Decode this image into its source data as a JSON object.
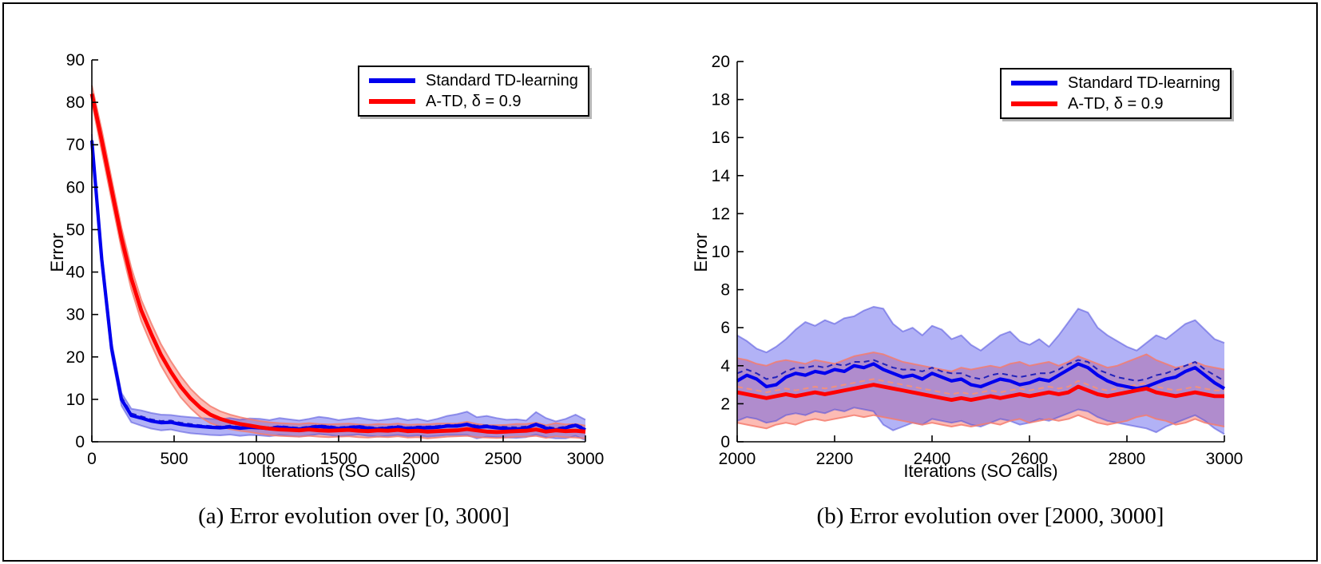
{
  "chart_data": [
    {
      "type": "line",
      "caption": "(a) Error evolution over [0, 3000]",
      "xlabel": "Iterations (SO calls)",
      "ylabel": "Error",
      "xlim": [
        0,
        3000
      ],
      "ylim": [
        0,
        90
      ],
      "xticks": [
        0,
        500,
        1000,
        1500,
        2000,
        2500,
        3000
      ],
      "yticks": [
        0,
        10,
        20,
        30,
        40,
        50,
        60,
        70,
        80,
        90
      ],
      "legend_position": "top-right",
      "grid": false,
      "x_start": 0,
      "x_step": 60,
      "series": [
        {
          "name": "Standard TD-learning",
          "color": "#0000ee",
          "band_fill": "rgba(85,85,235,0.45)",
          "edge_color": "rgba(80,80,220,0.55)",
          "dash_color": "#2222bb",
          "mean": [
            71,
            43,
            22,
            10,
            6.2,
            5.6,
            4.9,
            4.5,
            4.6,
            4.1,
            3.8,
            3.6,
            3.4,
            3.3,
            3.5,
            3.2,
            3.4,
            3.3,
            3.1,
            3.4,
            3.2,
            3.0,
            3.3,
            3.6,
            3.4,
            3.1,
            3.3,
            3.5,
            3.2,
            3.0,
            3.2,
            3.4,
            3.1,
            3.3,
            3.3,
            3.4,
            3.7,
            3.7,
            4.1,
            3.4,
            3.6,
            3.3,
            3.1,
            3.0,
            3.2,
            4.1,
            3.2,
            2.8,
            3.3,
            3.9,
            2.8
          ],
          "dashed": [
            71.2,
            43.4,
            22.5,
            10.6,
            6.7,
            6.0,
            5.3,
            4.9,
            5.0,
            4.5,
            4.2,
            3.9,
            3.7,
            3.6,
            3.8,
            3.5,
            3.7,
            3.6,
            3.4,
            3.7,
            3.5,
            3.3,
            3.6,
            3.9,
            3.7,
            3.4,
            3.6,
            3.8,
            3.5,
            3.3,
            3.5,
            3.7,
            3.4,
            3.6,
            3.6,
            3.7,
            4.0,
            4.0,
            4.3,
            3.8,
            3.9,
            3.6,
            3.5,
            3.4,
            3.6,
            4.3,
            3.6,
            3.2,
            3.6,
            4.2,
            3.2
          ],
          "upper": [
            72.5,
            44.5,
            23.5,
            11.5,
            7.8,
            7.4,
            6.8,
            6.4,
            6.3,
            6.0,
            5.8,
            5.6,
            5.4,
            5.3,
            5.6,
            5.2,
            5.5,
            5.4,
            5.1,
            5.6,
            5.3,
            5.0,
            5.4,
            5.9,
            5.6,
            5.1,
            5.4,
            5.7,
            5.3,
            5.0,
            5.3,
            5.6,
            5.1,
            5.4,
            4.9,
            5.4,
            6.1,
            6.5,
            7.1,
            5.8,
            6.1,
            5.6,
            5.2,
            5.3,
            5.0,
            7.0,
            5.6,
            4.8,
            5.4,
            6.4,
            5.2
          ],
          "lower": [
            69.5,
            41.5,
            20.5,
            8.5,
            4.6,
            3.8,
            3.1,
            2.7,
            2.9,
            2.4,
            2.0,
            1.8,
            1.6,
            1.5,
            1.7,
            1.4,
            1.6,
            1.5,
            1.3,
            1.6,
            1.4,
            1.2,
            1.5,
            1.8,
            1.6,
            1.3,
            1.5,
            1.7,
            1.4,
            1.2,
            1.4,
            1.6,
            1.3,
            1.5,
            1.2,
            1.4,
            1.6,
            1.6,
            1.6,
            0.8,
            1.2,
            1.1,
            1.0,
            0.9,
            1.1,
            1.7,
            1.1,
            0.8,
            0.8,
            1.4,
            0.4
          ]
        },
        {
          "name": "A-TD, δ = 0.9",
          "color": "#ff0000",
          "band_fill": "rgba(250,120,105,0.5)",
          "edge_color": "rgba(245,125,110,0.85)",
          "dash_color": "#f2907e",
          "mean": [
            82,
            71,
            59.5,
            48,
            38.5,
            31,
            25.5,
            20.5,
            16.5,
            13,
            10.2,
            8.0,
            6.4,
            5.4,
            4.7,
            4.2,
            3.8,
            3.4,
            3.1,
            2.9,
            2.8,
            2.7,
            2.9,
            2.7,
            2.6,
            2.7,
            2.8,
            2.6,
            2.5,
            2.7,
            2.6,
            2.8,
            2.5,
            2.6,
            2.4,
            2.5,
            2.6,
            2.7,
            3.0,
            2.7,
            2.4,
            2.3,
            2.4,
            2.5,
            2.6,
            2.9,
            2.4,
            2.7,
            2.5,
            2.6,
            2.4
          ],
          "dashed": [
            82.2,
            71.3,
            59.8,
            48.3,
            38.8,
            31.3,
            25.8,
            20.8,
            16.8,
            13.3,
            10.5,
            8.3,
            6.7,
            5.7,
            5.0,
            4.5,
            4.1,
            3.7,
            3.4,
            3.2,
            3.1,
            3.0,
            3.2,
            3.0,
            2.9,
            3.0,
            3.1,
            2.9,
            2.8,
            3.0,
            2.9,
            3.1,
            2.8,
            2.9,
            2.7,
            2.8,
            2.9,
            3.0,
            3.3,
            3.0,
            2.7,
            2.6,
            2.7,
            2.8,
            2.9,
            3.2,
            2.7,
            3.0,
            2.8,
            2.9,
            2.7
          ],
          "upper": [
            84,
            73.5,
            62,
            50.5,
            41,
            33.5,
            28,
            23,
            19,
            15.5,
            12.5,
            10.2,
            8.4,
            7.2,
            6.4,
            5.8,
            5.3,
            4.9,
            4.6,
            4.4,
            4.3,
            4.2,
            4.4,
            4.2,
            4.1,
            4.2,
            4.3,
            4.1,
            4.0,
            4.2,
            4.1,
            4.3,
            4.0,
            4.1,
            4.1,
            4.3,
            4.3,
            4.3,
            4.7,
            4.2,
            3.9,
            3.9,
            4.0,
            4.2,
            4.2,
            4.5,
            3.9,
            4.4,
            4.1,
            4.2,
            3.8
          ],
          "lower": [
            80,
            68.5,
            57,
            45.5,
            36,
            28.5,
            23,
            18,
            14,
            10.5,
            7.9,
            5.8,
            4.4,
            3.6,
            3.0,
            2.6,
            2.3,
            1.9,
            1.6,
            1.4,
            1.3,
            1.2,
            1.4,
            1.2,
            1.1,
            1.2,
            1.3,
            1.1,
            1.0,
            1.2,
            1.1,
            1.3,
            1.0,
            1.1,
            0.8,
            1.0,
            1.2,
            1.3,
            1.4,
            1.1,
            1.0,
            0.9,
            1.0,
            1.2,
            1.2,
            1.4,
            0.9,
            1.3,
            1.1,
            1.0,
            0.8
          ]
        }
      ]
    },
    {
      "type": "line",
      "caption": "(b) Error evolution over [2000, 3000]",
      "xlabel": "Iterations (SO calls)",
      "ylabel": "Error",
      "xlim": [
        2000,
        3000
      ],
      "ylim": [
        0,
        20
      ],
      "xticks": [
        2000,
        2200,
        2400,
        2600,
        2800,
        3000
      ],
      "yticks": [
        0,
        2,
        4,
        6,
        8,
        10,
        12,
        14,
        16,
        18,
        20
      ],
      "legend_position": "top-right",
      "grid": false,
      "x_start": 2000,
      "x_step": 20,
      "series": [
        {
          "name": "Standard TD-learning",
          "color": "#0000ee",
          "band_fill": "rgba(85,85,235,0.45)",
          "edge_color": "rgba(80,80,220,0.55)",
          "dash_color": "#2222bb",
          "mean": [
            3.2,
            3.5,
            3.3,
            2.9,
            3.0,
            3.4,
            3.6,
            3.5,
            3.7,
            3.6,
            3.8,
            3.7,
            4.0,
            3.9,
            4.1,
            3.8,
            3.6,
            3.4,
            3.5,
            3.3,
            3.6,
            3.4,
            3.2,
            3.3,
            3.0,
            2.9,
            3.1,
            3.3,
            3.2,
            3.0,
            3.1,
            3.3,
            3.2,
            3.5,
            3.8,
            4.1,
            3.9,
            3.5,
            3.2,
            3.0,
            2.9,
            2.8,
            2.9,
            3.1,
            3.3,
            3.4,
            3.7,
            3.9,
            3.5,
            3.1,
            2.8
          ],
          "dashed": [
            3.6,
            3.8,
            3.6,
            3.3,
            3.4,
            3.7,
            3.9,
            3.9,
            4.0,
            3.9,
            4.1,
            4.0,
            4.2,
            4.2,
            4.3,
            4.1,
            3.9,
            3.8,
            3.8,
            3.7,
            3.9,
            3.7,
            3.6,
            3.6,
            3.4,
            3.3,
            3.5,
            3.6,
            3.5,
            3.4,
            3.5,
            3.6,
            3.6,
            3.8,
            4.1,
            4.3,
            4.2,
            3.8,
            3.6,
            3.4,
            3.3,
            3.2,
            3.3,
            3.5,
            3.6,
            3.8,
            4.0,
            4.2,
            3.8,
            3.5,
            3.2
          ],
          "upper": [
            5.6,
            5.3,
            4.9,
            4.7,
            5.0,
            5.4,
            5.9,
            6.3,
            6.1,
            6.4,
            6.2,
            6.5,
            6.6,
            6.9,
            7.1,
            7.0,
            6.2,
            5.8,
            6.0,
            5.6,
            6.1,
            5.9,
            5.4,
            5.6,
            5.1,
            4.8,
            5.2,
            5.6,
            5.8,
            5.3,
            5.1,
            5.4,
            5.0,
            5.6,
            6.3,
            7.0,
            6.8,
            6.0,
            5.6,
            5.3,
            5.0,
            4.8,
            5.2,
            5.6,
            5.4,
            5.8,
            6.2,
            6.4,
            5.9,
            5.4,
            5.2
          ],
          "lower": [
            1.1,
            1.3,
            1.2,
            1.0,
            1.1,
            1.4,
            1.5,
            1.4,
            1.6,
            1.5,
            1.7,
            1.6,
            1.8,
            1.7,
            1.6,
            0.9,
            0.6,
            0.8,
            1.0,
            0.9,
            1.2,
            1.1,
            1.0,
            1.1,
            0.9,
            0.8,
            1.0,
            1.2,
            1.1,
            0.9,
            1.0,
            1.2,
            1.1,
            1.3,
            1.5,
            1.7,
            1.6,
            1.3,
            1.1,
            1.0,
            0.9,
            0.8,
            0.7,
            0.5,
            0.8,
            1.0,
            1.2,
            1.4,
            1.1,
            0.7,
            0.4
          ]
        },
        {
          "name": "A-TD, δ = 0.9",
          "color": "#ff0000",
          "band_fill": "rgba(250,120,105,0.5)",
          "edge_color": "rgba(245,125,110,0.85)",
          "dash_color": "#f2907e",
          "mean": [
            2.6,
            2.5,
            2.4,
            2.3,
            2.4,
            2.5,
            2.4,
            2.5,
            2.6,
            2.5,
            2.6,
            2.7,
            2.8,
            2.9,
            3.0,
            2.9,
            2.8,
            2.7,
            2.6,
            2.5,
            2.4,
            2.3,
            2.2,
            2.3,
            2.2,
            2.3,
            2.4,
            2.3,
            2.4,
            2.5,
            2.4,
            2.5,
            2.6,
            2.5,
            2.6,
            2.9,
            2.7,
            2.5,
            2.4,
            2.5,
            2.6,
            2.7,
            2.8,
            2.6,
            2.5,
            2.4,
            2.5,
            2.6,
            2.5,
            2.4,
            2.4
          ],
          "dashed": [
            2.9,
            2.8,
            2.7,
            2.6,
            2.7,
            2.8,
            2.7,
            2.8,
            2.9,
            2.8,
            2.9,
            3.0,
            3.1,
            3.2,
            3.3,
            3.2,
            3.1,
            3.0,
            2.9,
            2.8,
            2.7,
            2.6,
            2.5,
            2.6,
            2.5,
            2.6,
            2.7,
            2.6,
            2.7,
            2.8,
            2.7,
            2.8,
            2.9,
            2.8,
            2.9,
            3.2,
            3.0,
            2.8,
            2.7,
            2.8,
            2.9,
            3.0,
            3.1,
            2.9,
            2.8,
            2.7,
            2.8,
            2.9,
            2.8,
            2.7,
            2.7
          ],
          "upper": [
            4.4,
            4.3,
            4.1,
            4.0,
            4.2,
            4.3,
            4.2,
            4.1,
            4.3,
            4.2,
            4.1,
            4.3,
            4.5,
            4.6,
            4.7,
            4.6,
            4.4,
            4.2,
            4.1,
            4.0,
            3.9,
            3.8,
            3.7,
            3.9,
            3.8,
            3.9,
            4.0,
            3.9,
            4.1,
            4.2,
            4.0,
            4.1,
            4.2,
            4.0,
            4.2,
            4.5,
            4.3,
            4.1,
            3.9,
            4.0,
            4.2,
            4.4,
            4.6,
            4.3,
            4.1,
            3.9,
            4.0,
            4.2,
            4.0,
            3.9,
            3.8
          ],
          "lower": [
            1.0,
            0.9,
            0.8,
            0.7,
            0.9,
            1.0,
            0.9,
            1.1,
            1.2,
            1.1,
            1.2,
            1.3,
            1.4,
            1.3,
            1.4,
            1.3,
            1.2,
            1.1,
            1.0,
            0.9,
            1.0,
            0.9,
            0.8,
            0.9,
            0.8,
            0.9,
            1.0,
            0.9,
            1.1,
            1.2,
            1.0,
            1.1,
            1.2,
            1.1,
            1.2,
            1.4,
            1.2,
            1.0,
            0.9,
            1.0,
            1.1,
            1.3,
            1.4,
            1.2,
            1.1,
            0.9,
            1.0,
            1.2,
            1.0,
            0.9,
            0.8
          ]
        }
      ]
    }
  ]
}
